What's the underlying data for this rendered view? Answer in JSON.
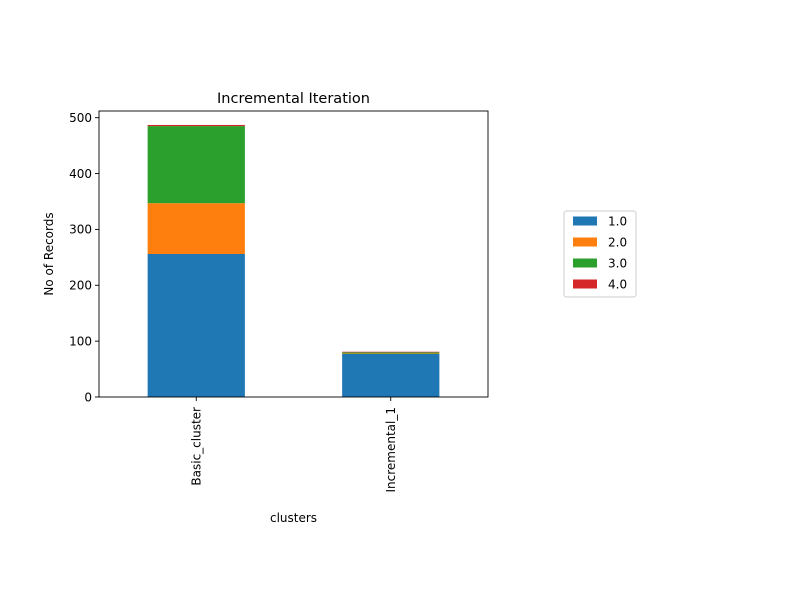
{
  "chart_data": {
    "type": "bar",
    "stacked": true,
    "title": "Incremental Iteration",
    "xlabel": "clusters",
    "ylabel": "No of Records",
    "categories": [
      "Basic_cluster",
      "Incremental_1"
    ],
    "series": [
      {
        "name": "1.0",
        "color": "#1f77b4",
        "values": [
          256,
          77
        ]
      },
      {
        "name": "2.0",
        "color": "#ff7f0e",
        "values": [
          91,
          1
        ]
      },
      {
        "name": "3.0",
        "color": "#2ca02c",
        "values": [
          138,
          2
        ]
      },
      {
        "name": "4.0",
        "color": "#d62728",
        "values": [
          2,
          1
        ]
      }
    ],
    "ylim": [
      0,
      512
    ],
    "yticks": [
      "0",
      "100",
      "200",
      "300",
      "400",
      "500"
    ],
    "grid": false,
    "legend_position": "right"
  }
}
